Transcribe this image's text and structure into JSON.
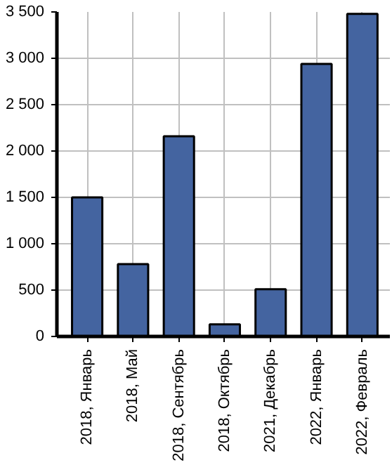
{
  "chart_data": {
    "type": "bar",
    "categories": [
      "2018, Январь",
      "2018, Май",
      "2018, Сентябрь",
      "2018, Октябрь",
      "2021, Декабрь",
      "2022, Январь",
      "2022, Февраль"
    ],
    "values": [
      1500,
      780,
      2160,
      130,
      510,
      2940,
      3480
    ],
    "color": "#4464a0",
    "ylim": [
      0,
      3500
    ],
    "yticks": [
      0,
      500,
      {
        "value": 1000,
        "label": "1 000"
      },
      {
        "value": 1500,
        "label": "1 500"
      },
      {
        "value": 2000,
        "label": "2 000"
      },
      {
        "value": 2500,
        "label": "2 500"
      },
      {
        "value": 3000,
        "label": "3 000"
      },
      {
        "value": 3500,
        "label": "3 500"
      }
    ],
    "grid": true
  }
}
